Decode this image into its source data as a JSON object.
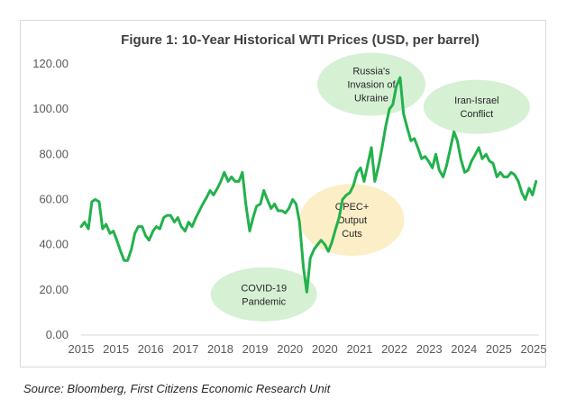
{
  "colors": {
    "line": "#22b14c",
    "bubble_green": "#d6f0d4",
    "bubble_yellow": "#fcefc7",
    "axis": "#d9d9d9",
    "tick_text": "#595959"
  },
  "source_note": "Source: Bloomberg, First Citizens Economic Research Unit",
  "chart_data": {
    "type": "line",
    "title": "Figure 1: 10-Year Historical WTI Prices (USD, per barrel)",
    "xlabel": "",
    "ylabel": "",
    "ylim": [
      0,
      120
    ],
    "xlim": [
      2015.0,
      2025.65
    ],
    "y_ticks": [
      "0.00",
      "20.00",
      "40.00",
      "60.00",
      "80.00",
      "100.00",
      "120.00"
    ],
    "x_tick_labels": [
      "2015",
      "2015",
      "2016",
      "2017",
      "2018",
      "2019",
      "2020",
      "2020",
      "2021",
      "2022",
      "2023",
      "2024",
      "2025",
      "2025"
    ],
    "grid": false,
    "legend": "none",
    "series": [
      {
        "x": [
          2015.0,
          2015.08,
          2015.17,
          2015.25,
          2015.33,
          2015.42,
          2015.5,
          2015.58,
          2015.67,
          2015.75,
          2015.83,
          2015.92,
          2016.0,
          2016.08,
          2016.17,
          2016.25,
          2016.33,
          2016.42,
          2016.5,
          2016.58,
          2016.67,
          2016.75,
          2016.83,
          2016.92,
          2017.0,
          2017.08,
          2017.17,
          2017.25,
          2017.33,
          2017.42,
          2017.5,
          2017.58,
          2017.67,
          2017.75,
          2017.83,
          2017.92,
          2018.0,
          2018.08,
          2018.17,
          2018.25,
          2018.33,
          2018.42,
          2018.5,
          2018.58,
          2018.67,
          2018.75,
          2018.83,
          2018.92,
          2019.0,
          2019.08,
          2019.17,
          2019.25,
          2019.33,
          2019.42,
          2019.5,
          2019.58,
          2019.67,
          2019.75,
          2019.83,
          2019.92,
          2020.0,
          2020.08,
          2020.17,
          2020.25,
          2020.33,
          2020.42,
          2020.5,
          2020.58,
          2020.67,
          2020.75,
          2020.83,
          2020.92,
          2021.0,
          2021.08,
          2021.17,
          2021.25,
          2021.33,
          2021.42,
          2021.5,
          2021.58,
          2021.67,
          2021.75,
          2021.83,
          2021.92,
          2022.0,
          2022.08,
          2022.17,
          2022.25,
          2022.33,
          2022.42,
          2022.5,
          2022.58,
          2022.67,
          2022.75,
          2022.83,
          2022.92,
          2023.0,
          2023.08,
          2023.17,
          2023.25,
          2023.33,
          2023.42,
          2023.5,
          2023.58,
          2023.67,
          2023.75,
          2023.83,
          2023.92,
          2024.0,
          2024.08,
          2024.17,
          2024.25,
          2024.33,
          2024.42,
          2024.5,
          2024.58,
          2024.67,
          2024.75,
          2024.83,
          2024.92,
          2025.0,
          2025.08,
          2025.17,
          2025.25,
          2025.33,
          2025.42,
          2025.5,
          2025.58
        ],
        "values": [
          48,
          50,
          47,
          59,
          60,
          59,
          47,
          49,
          45,
          46,
          42,
          37,
          33,
          33,
          38,
          45,
          48,
          48,
          44,
          42,
          46,
          48,
          47,
          52,
          53,
          53,
          50,
          52,
          48,
          46,
          50,
          48,
          52,
          55,
          58,
          61,
          64,
          62,
          65,
          68,
          72,
          68,
          70,
          68,
          68,
          72,
          58,
          46,
          52,
          57,
          58,
          64,
          60,
          56,
          58,
          55,
          55,
          54,
          56,
          60,
          58,
          50,
          30,
          19,
          34,
          38,
          40,
          42,
          40,
          37,
          41,
          47,
          52,
          60,
          62,
          63,
          66,
          72,
          74,
          68,
          76,
          83,
          68,
          75,
          83,
          92,
          100,
          102,
          110,
          114,
          98,
          92,
          86,
          87,
          83,
          78,
          79,
          77,
          74,
          80,
          73,
          70,
          75,
          82,
          90,
          86,
          78,
          72,
          73,
          77,
          80,
          83,
          78,
          80,
          77,
          76,
          70,
          72,
          70,
          70,
          72,
          71,
          68,
          63,
          60,
          65,
          62,
          68
        ]
      }
    ],
    "annotations": [
      {
        "text": [
          "Russia's",
          "Invasion of",
          "Ukraine"
        ],
        "x": 2021.75,
        "y": 111,
        "style": "green"
      },
      {
        "text": [
          "Iran-Israel",
          "Conflict"
        ],
        "x": 2024.2,
        "y": 101,
        "style": "green"
      },
      {
        "text": [
          "OPEC+",
          "Output",
          "Cuts"
        ],
        "x": 2021.3,
        "y": 51,
        "style": "yellow"
      },
      {
        "text": [
          "COVID-19",
          "Pandemic"
        ],
        "x": 2019.25,
        "y": 18,
        "style": "green"
      }
    ]
  }
}
